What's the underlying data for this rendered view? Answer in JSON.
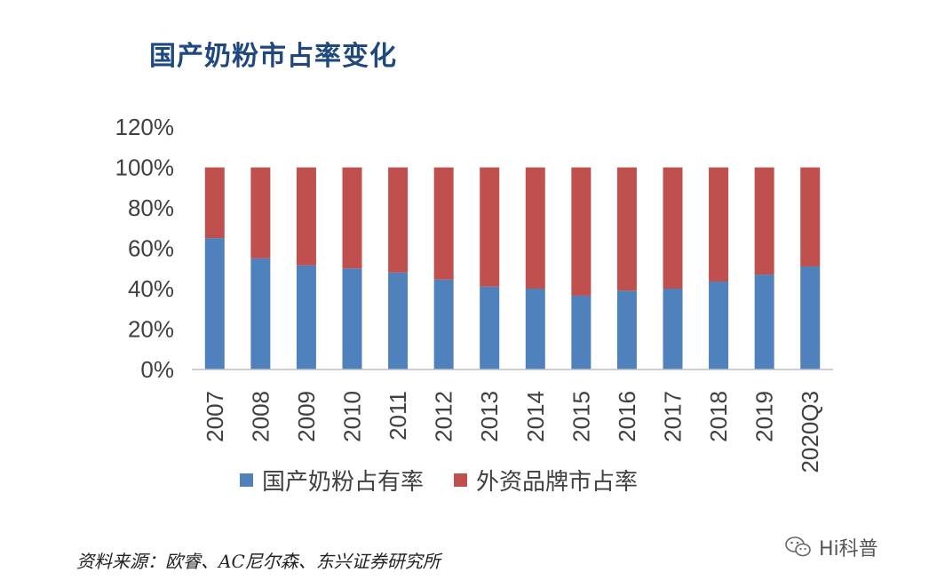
{
  "title": "国产奶粉市占率变化",
  "chart_data": {
    "type": "bar",
    "stacked": true,
    "categories": [
      "2007",
      "2008",
      "2009",
      "2010",
      "2011",
      "2012",
      "2013",
      "2014",
      "2015",
      "2016",
      "2017",
      "2018",
      "2019",
      "2020Q3"
    ],
    "series": [
      {
        "name": "国产奶粉占有率",
        "color": "#4f81bd",
        "values": [
          65,
          55,
          51.5,
          50,
          48,
          44.5,
          41,
          40,
          36.5,
          39,
          40,
          43.5,
          47,
          51
        ]
      },
      {
        "name": "外资品牌市占率",
        "color": "#c0504d",
        "values": [
          35,
          45,
          48.5,
          50,
          52,
          55.5,
          59,
          60,
          63.5,
          61,
          60,
          56.5,
          53,
          49
        ]
      }
    ],
    "ylim": [
      0,
      120
    ],
    "yticks": [
      "0%",
      "20%",
      "40%",
      "60%",
      "80%",
      "100%",
      "120%"
    ],
    "grid": false,
    "legend": "bottom"
  },
  "source": "资料来源：欧睿、AC尼尔森、东兴证券研究所",
  "watermark": "Hi科普"
}
